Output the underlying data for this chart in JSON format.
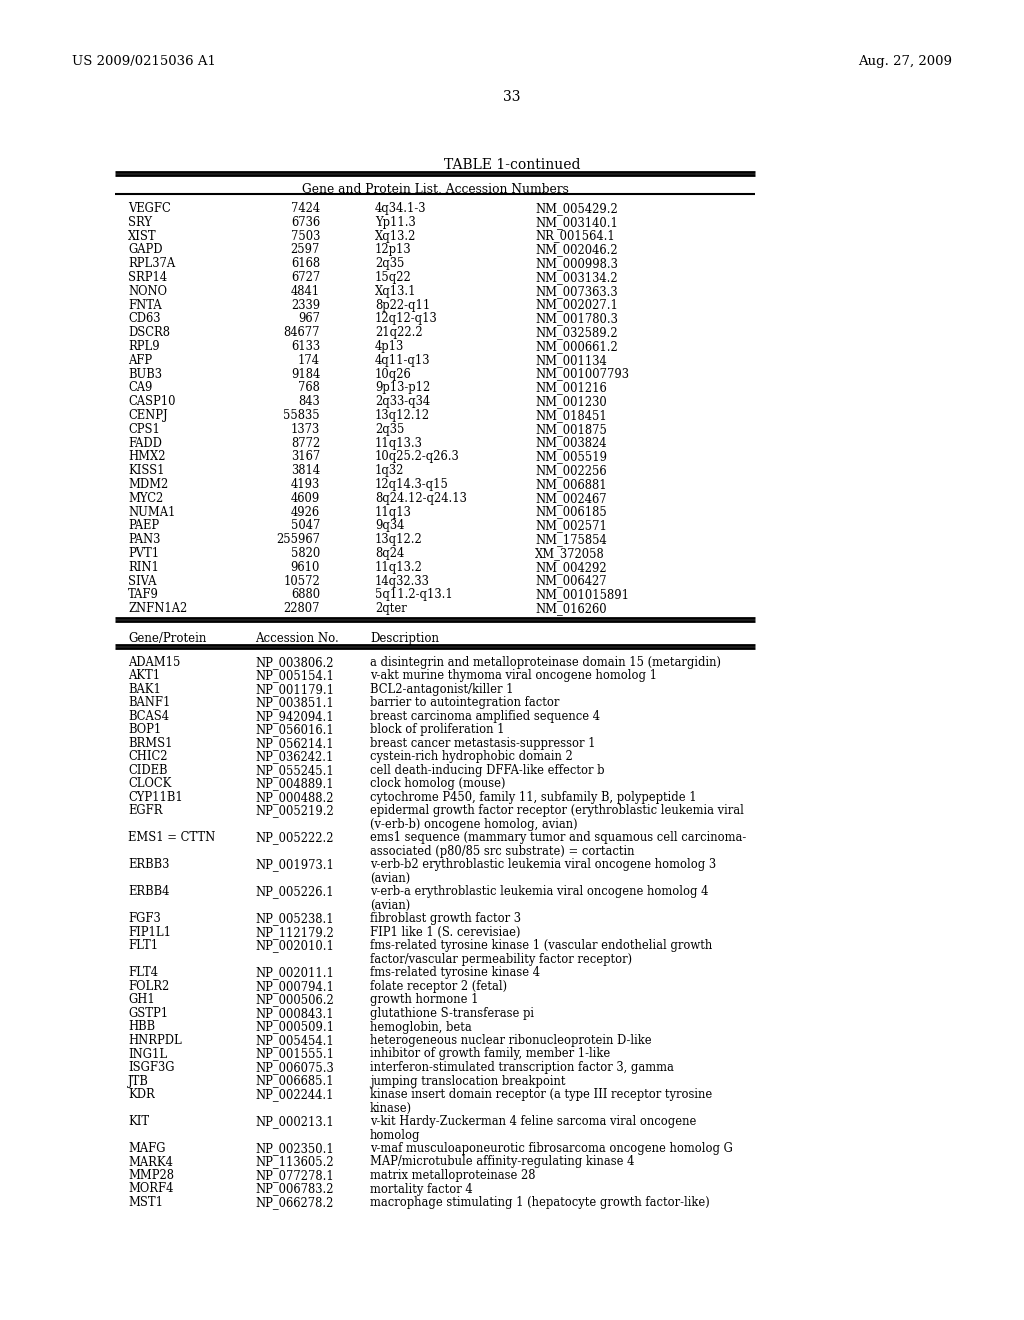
{
  "header_left": "US 2009/0215036 A1",
  "header_right": "Aug. 27, 2009",
  "page_number": "33",
  "table_title": "TABLE 1-continued",
  "table1_subtitle": "Gene and Protein List, Accession Numbers",
  "table1_data": [
    [
      "VEGFC",
      "7424",
      "4q34.1-3",
      "NM_005429.2"
    ],
    [
      "SRY",
      "6736",
      "Yp11.3",
      "NM_003140.1"
    ],
    [
      "XIST",
      "7503",
      "Xq13.2",
      "NR_001564.1"
    ],
    [
      "GAPD",
      "2597",
      "12p13",
      "NM_002046.2"
    ],
    [
      "RPL37A",
      "6168",
      "2q35",
      "NM_000998.3"
    ],
    [
      "SRP14",
      "6727",
      "15q22",
      "NM_003134.2"
    ],
    [
      "NONO",
      "4841",
      "Xq13.1",
      "NM_007363.3"
    ],
    [
      "FNTA",
      "2339",
      "8p22-q11",
      "NM_002027.1"
    ],
    [
      "CD63",
      "967",
      "12q12-q13",
      "NM_001780.3"
    ],
    [
      "DSCR8",
      "84677",
      "21q22.2",
      "NM_032589.2"
    ],
    [
      "RPL9",
      "6133",
      "4p13",
      "NM_000661.2"
    ],
    [
      "AFP",
      "174",
      "4q11-q13",
      "NM_001134"
    ],
    [
      "BUB3",
      "9184",
      "10q26",
      "NM_001007793"
    ],
    [
      "CA9",
      "768",
      "9p13-p12",
      "NM_001216"
    ],
    [
      "CASP10",
      "843",
      "2q33-q34",
      "NM_001230"
    ],
    [
      "CENPJ",
      "55835",
      "13q12.12",
      "NM_018451"
    ],
    [
      "CPS1",
      "1373",
      "2q35",
      "NM_001875"
    ],
    [
      "FADD",
      "8772",
      "11q13.3",
      "NM_003824"
    ],
    [
      "HMX2",
      "3167",
      "10q25.2-q26.3",
      "NM_005519"
    ],
    [
      "KISS1",
      "3814",
      "1q32",
      "NM_002256"
    ],
    [
      "MDM2",
      "4193",
      "12q14.3-q15",
      "NM_006881"
    ],
    [
      "MYC2",
      "4609",
      "8q24.12-q24.13",
      "NM_002467"
    ],
    [
      "NUMA1",
      "4926",
      "11q13",
      "NM_006185"
    ],
    [
      "PAEP",
      "5047",
      "9q34",
      "NM_002571"
    ],
    [
      "PAN3",
      "255967",
      "13q12.2",
      "NM_175854"
    ],
    [
      "PVT1",
      "5820",
      "8q24",
      "XM_372058"
    ],
    [
      "RIN1",
      "9610",
      "11q13.2",
      "NM_004292"
    ],
    [
      "SIVA",
      "10572",
      "14q32.33",
      "NM_006427"
    ],
    [
      "TAF9",
      "6880",
      "5q11.2-q13.1",
      "NM_001015891"
    ],
    [
      "ZNFN1A2",
      "22807",
      "2qter",
      "NM_016260"
    ]
  ],
  "table2_cols": [
    "Gene/Protein",
    "Accession No.",
    "Description"
  ],
  "table2_data": [
    [
      "ADAM15",
      "NP_003806.2",
      "a disintegrin and metalloproteinase domain 15 (metargidin)",
      1
    ],
    [
      "AKT1",
      "NP_005154.1",
      "v-akt murine thymoma viral oncogene homolog 1",
      1
    ],
    [
      "BAK1",
      "NP_001179.1",
      "BCL2-antagonist/killer 1",
      1
    ],
    [
      "BANF1",
      "NP_003851.1",
      "barrier to autointegration factor",
      1
    ],
    [
      "BCAS4",
      "NP_942094.1",
      "breast carcinoma amplified sequence 4",
      1
    ],
    [
      "BOP1",
      "NP_056016.1",
      "block of proliferation 1",
      1
    ],
    [
      "BRMS1",
      "NP_056214.1",
      "breast cancer metastasis-suppressor 1",
      1
    ],
    [
      "CHIC2",
      "NP_036242.1",
      "cystein-rich hydrophobic domain 2",
      1
    ],
    [
      "CIDEB",
      "NP_055245.1",
      "cell death-inducing DFFA-like effector b",
      1
    ],
    [
      "CLOCK",
      "NP_004889.1",
      "clock homolog (mouse)",
      1
    ],
    [
      "CYP11B1",
      "NP_000488.2",
      "cytochrome P450, family 11, subfamily B, polypeptide 1",
      1
    ],
    [
      "EGFR",
      "NP_005219.2",
      "epidermal growth factor receptor (erythroblastic leukemia viral|(v-erb-b) oncogene homolog, avian)",
      2
    ],
    [
      "EMS1 = CTTN",
      "NP_005222.2",
      "ems1 sequence (mammary tumor and squamous cell carcinoma-|associated (p80/85 src substrate) = cortactin",
      2
    ],
    [
      "ERBB3",
      "NP_001973.1",
      "v-erb-b2 erythroblastic leukemia viral oncogene homolog 3|(avian)",
      2
    ],
    [
      "ERBB4",
      "NP_005226.1",
      "v-erb-a erythroblastic leukemia viral oncogene homolog 4|(avian)",
      2
    ],
    [
      "FGF3",
      "NP_005238.1",
      "fibroblast growth factor 3",
      1
    ],
    [
      "FIP1L1",
      "NP_112179.2",
      "FIP1 like 1 (S. cerevisiae)",
      1
    ],
    [
      "FLT1",
      "NP_002010.1",
      "fms-related tyrosine kinase 1 (vascular endothelial growth|factor/vascular permeability factor receptor)",
      2
    ],
    [
      "FLT4",
      "NP_002011.1",
      "fms-related tyrosine kinase 4",
      1
    ],
    [
      "FOLR2",
      "NP_000794.1",
      "folate receptor 2 (fetal)",
      1
    ],
    [
      "GH1",
      "NP_000506.2",
      "growth hormone 1",
      1
    ],
    [
      "GSTP1",
      "NP_000843.1",
      "glutathione S-transferase pi",
      1
    ],
    [
      "HBB",
      "NP_000509.1",
      "hemoglobin, beta",
      1
    ],
    [
      "HNRPDL",
      "NP_005454.1",
      "heterogeneous nuclear ribonucleoprotein D-like",
      1
    ],
    [
      "ING1L",
      "NP_001555.1",
      "inhibitor of growth family, member 1-like",
      1
    ],
    [
      "ISGF3G",
      "NP_006075.3",
      "interferon-stimulated transcription factor 3, gamma",
      1
    ],
    [
      "JTB",
      "NP_006685.1",
      "jumping translocation breakpoint",
      1
    ],
    [
      "KDR",
      "NP_002244.1",
      "kinase insert domain receptor (a type III receptor tyrosine|kinase)",
      2
    ],
    [
      "KIT",
      "NP_000213.1",
      "v-kit Hardy-Zuckerman 4 feline sarcoma viral oncogene|homolog",
      2
    ],
    [
      "MAFG",
      "NP_002350.1",
      "v-maf musculoaponeurotic fibrosarcoma oncogene homolog G",
      1
    ],
    [
      "MARK4",
      "NP_113605.2",
      "MAP/microtubule affinity-regulating kinase 4",
      1
    ],
    [
      "MMP28",
      "NP_077278.1",
      "matrix metalloproteinase 28",
      1
    ],
    [
      "MORF4",
      "NP_006783.2",
      "mortality factor 4",
      1
    ],
    [
      "MST1",
      "NP_066278.2",
      "macrophage stimulating 1 (hepatocyte growth factor-like)",
      1
    ]
  ],
  "bg_color": "#ffffff",
  "text_color": "#000000"
}
